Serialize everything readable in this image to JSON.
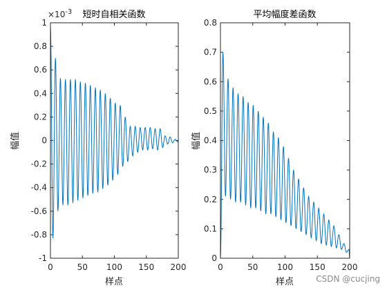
{
  "colors": {
    "line": "#0072BD",
    "axis": "#262626",
    "background": "#ffffff"
  },
  "watermark": "CSDN @cucjing",
  "chart_data": [
    {
      "type": "line",
      "title": "短时自相关函数",
      "exponent_label": "×10",
      "exponent_value": "-3",
      "xlabel": "样点",
      "ylabel": "幅值",
      "xlim": [
        0,
        200
      ],
      "ylim": [
        -1,
        1
      ],
      "xticks": [
        0,
        50,
        100,
        150,
        200
      ],
      "yticks": [
        -1,
        -0.8,
        -0.6,
        -0.4,
        -0.2,
        0,
        0.2,
        0.4,
        0.6,
        0.8,
        1
      ],
      "ytick_labels": [
        "-1",
        "-0.8",
        "-0.6",
        "-0.4",
        "-0.2",
        "0",
        "0.2",
        "0.4",
        "0.6",
        "0.8",
        "1"
      ],
      "period": 7.8,
      "series": [
        {
          "x": [
            0,
            3.9,
            7.8,
            11.7,
            15.6,
            19.5,
            23.4,
            27.3,
            31.2,
            35.1,
            39.0,
            42.9,
            46.8,
            50.7,
            54.6,
            58.5,
            62.4,
            66.3,
            70.2,
            74.1,
            78.0,
            81.9,
            85.8,
            89.7,
            93.6,
            97.5,
            101.4,
            105.3,
            109.2,
            113.1,
            117.0,
            120.9,
            124.8,
            128.7,
            132.6,
            136.5,
            140.4,
            144.3,
            148.2,
            152.1,
            156.0,
            159.9,
            163.8,
            167.7,
            171.6,
            175.5,
            179.4,
            183.3,
            187.2,
            191.1,
            195.0,
            198.9,
            200
          ],
          "y": [
            0.97,
            -0.83,
            0.7,
            -0.6,
            0.53,
            -0.55,
            0.52,
            -0.55,
            0.52,
            -0.53,
            0.52,
            -0.51,
            0.5,
            -0.49,
            0.49,
            -0.47,
            0.47,
            -0.45,
            0.45,
            -0.44,
            0.43,
            -0.41,
            0.4,
            -0.38,
            0.36,
            -0.34,
            0.32,
            -0.29,
            0.3,
            -0.22,
            0.2,
            -0.18,
            0.12,
            -0.13,
            0.12,
            -0.1,
            0.11,
            -0.08,
            0.11,
            -0.08,
            0.11,
            -0.07,
            0.1,
            -0.08,
            0.1,
            -0.06,
            0.04,
            -0.03,
            0.03,
            -0.02,
            0.01,
            -0.01,
            0
          ]
        }
      ]
    },
    {
      "type": "line",
      "title": "平均幅度差函数",
      "xlabel": "样点",
      "ylabel": "幅值",
      "xlim": [
        0,
        200
      ],
      "ylim": [
        0,
        0.8
      ],
      "xticks": [
        0,
        50,
        100,
        150,
        200
      ],
      "yticks": [
        0,
        0.1,
        0.2,
        0.3,
        0.4,
        0.5,
        0.6,
        0.7,
        0.8
      ],
      "ytick_labels": [
        "0",
        "0.1",
        "0.2",
        "0.3",
        "0.4",
        "0.5",
        "0.6",
        "0.7",
        "0.8"
      ],
      "period": 7.8,
      "series": [
        {
          "x": [
            0,
            3.9,
            7.8,
            11.7,
            15.6,
            19.5,
            23.4,
            27.3,
            31.2,
            35.1,
            39.0,
            42.9,
            46.8,
            50.7,
            54.6,
            58.5,
            62.4,
            66.3,
            70.2,
            74.1,
            78.0,
            81.9,
            85.8,
            89.7,
            93.6,
            97.5,
            101.4,
            105.3,
            109.2,
            113.1,
            117.0,
            120.9,
            124.8,
            128.7,
            132.6,
            136.5,
            140.4,
            144.3,
            148.2,
            152.1,
            156.0,
            159.9,
            163.8,
            167.7,
            171.6,
            175.5,
            179.4,
            183.3,
            187.2,
            191.1,
            195.0,
            198.9,
            200
          ],
          "y": [
            0,
            0.7,
            0.21,
            0.61,
            0.2,
            0.58,
            0.19,
            0.56,
            0.19,
            0.55,
            0.18,
            0.53,
            0.17,
            0.52,
            0.17,
            0.5,
            0.16,
            0.48,
            0.15,
            0.46,
            0.15,
            0.43,
            0.14,
            0.41,
            0.13,
            0.38,
            0.12,
            0.34,
            0.11,
            0.3,
            0.1,
            0.27,
            0.09,
            0.24,
            0.08,
            0.21,
            0.07,
            0.19,
            0.06,
            0.17,
            0.05,
            0.15,
            0.045,
            0.13,
            0.04,
            0.11,
            0.035,
            0.08,
            0.03,
            0.05,
            0.02,
            0.03,
            0.0
          ]
        }
      ]
    }
  ]
}
